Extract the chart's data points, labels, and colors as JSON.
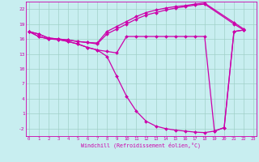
{
  "xlabel": "Windchill (Refroidissement éolien,°C)",
  "x_ticks": [
    0,
    1,
    2,
    3,
    4,
    5,
    6,
    7,
    8,
    9,
    10,
    11,
    12,
    13,
    14,
    15,
    16,
    17,
    18,
    19,
    20,
    21,
    22,
    23
  ],
  "ylim": [
    -3.5,
    23.5
  ],
  "xlim": [
    -0.3,
    23.3
  ],
  "yticks": [
    -2,
    1,
    4,
    7,
    10,
    13,
    16,
    19,
    22
  ],
  "bg_color": "#c8eef0",
  "line_color": "#cc00aa",
  "grid_color": "#a0d0c8",
  "line1_x": [
    0,
    1,
    2,
    3,
    4,
    5,
    6,
    7,
    8,
    9,
    10,
    11,
    12,
    13,
    14,
    15,
    16,
    17,
    18,
    21,
    22
  ],
  "line1_y": [
    17.5,
    17.0,
    16.2,
    16.0,
    15.8,
    15.5,
    15.3,
    15.2,
    17.5,
    18.5,
    19.5,
    20.5,
    21.3,
    21.8,
    22.2,
    22.5,
    22.7,
    23.0,
    23.2,
    19.3,
    18.0
  ],
  "line2_x": [
    0,
    1,
    2,
    3,
    4,
    5,
    6,
    7,
    8,
    9,
    10,
    11,
    12,
    13,
    14,
    15,
    16,
    17,
    18,
    21,
    22
  ],
  "line2_y": [
    17.5,
    17.0,
    16.2,
    16.0,
    15.8,
    15.5,
    15.3,
    15.0,
    17.0,
    18.0,
    19.0,
    20.0,
    20.8,
    21.3,
    21.8,
    22.2,
    22.5,
    22.8,
    23.0,
    19.0,
    17.8
  ],
  "line3_x": [
    0,
    1,
    2,
    3,
    4,
    5,
    6,
    7,
    8,
    9,
    10,
    11,
    12,
    13,
    14,
    15,
    16,
    17,
    18,
    19,
    20,
    21,
    22
  ],
  "line3_y": [
    17.5,
    16.5,
    16.0,
    15.9,
    15.5,
    15.0,
    14.3,
    13.8,
    13.5,
    13.2,
    16.5,
    16.5,
    16.5,
    16.5,
    16.5,
    16.5,
    16.5,
    16.5,
    16.5,
    -2.5,
    -1.8,
    17.5,
    17.8
  ],
  "line4_x": [
    0,
    1,
    2,
    3,
    4,
    5,
    6,
    7,
    8,
    9,
    10,
    11,
    12,
    13,
    14,
    15,
    16,
    17,
    18,
    19,
    20,
    21,
    22
  ],
  "line4_y": [
    17.5,
    16.5,
    16.0,
    15.9,
    15.5,
    15.0,
    14.3,
    13.8,
    12.5,
    8.5,
    4.5,
    1.5,
    -0.5,
    -1.5,
    -2.0,
    -2.3,
    -2.5,
    -2.7,
    -2.8,
    -2.5,
    -1.8,
    17.5,
    17.8
  ]
}
